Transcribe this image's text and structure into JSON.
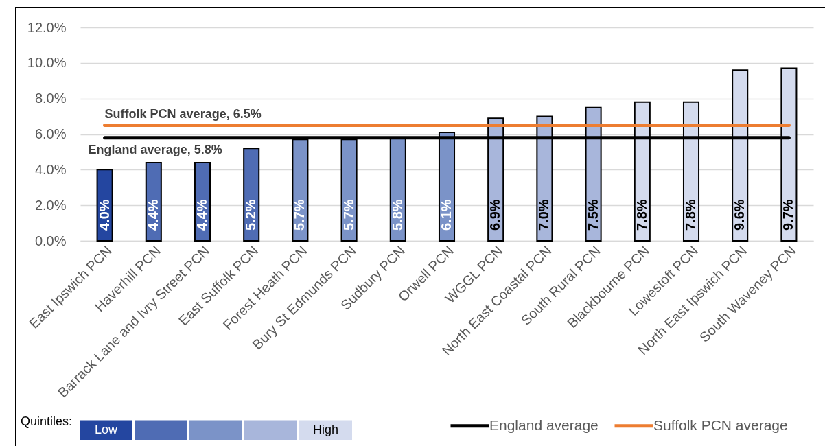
{
  "chart_data": {
    "type": "bar",
    "stacked": true,
    "categories": [
      "East Ipswich PCN",
      "Haverhill PCN",
      "Barrack Lane and Ivry Street PCN",
      "East Suffolk PCN",
      "Forest Heath PCN",
      "Bury St Edmunds PCN",
      "Sudbury PCN",
      "Orwell PCN",
      "WGGL PCN",
      "North East Coastal PCN",
      "South Rural PCN",
      "Blackbourne PCN",
      "Lowestoft PCN",
      "North East Ipswich PCN",
      "South Waveney PCN"
    ],
    "series": [
      {
        "name": "Low",
        "color": "#2446a0",
        "values": [
          4.0,
          null,
          null,
          null,
          null,
          null,
          null,
          null,
          null,
          null,
          null,
          null,
          null,
          null,
          null
        ],
        "value_labels": [
          "4.0%",
          null,
          null,
          null,
          null,
          null,
          null,
          null,
          null,
          null,
          null,
          null,
          null,
          null,
          null
        ]
      },
      {
        "color": "#4f6cb4",
        "values": [
          null,
          4.4,
          4.4,
          5.2,
          null,
          null,
          null,
          null,
          null,
          null,
          null,
          null,
          null,
          null,
          null
        ],
        "value_labels": [
          null,
          "4.4%",
          "4.4%",
          "5.2%",
          null,
          null,
          null,
          null,
          null,
          null,
          null,
          null,
          null,
          null,
          null
        ]
      },
      {
        "color": "#7b93c8",
        "values": [
          null,
          null,
          null,
          null,
          5.7,
          5.7,
          5.8,
          6.1,
          null,
          null,
          null,
          null,
          null,
          null,
          null
        ],
        "value_labels": [
          null,
          null,
          null,
          null,
          "5.7%",
          "5.7%",
          "5.8%",
          "6.1%",
          null,
          null,
          null,
          null,
          null,
          null,
          null
        ]
      },
      {
        "color": "#a8b6db",
        "values": [
          null,
          null,
          null,
          null,
          null,
          null,
          null,
          null,
          6.9,
          7.0,
          7.5,
          null,
          null,
          null,
          null
        ],
        "value_labels": [
          null,
          null,
          null,
          null,
          null,
          null,
          null,
          null,
          "6.9%",
          "7.0%",
          "7.5%",
          null,
          null,
          null,
          null
        ]
      },
      {
        "name": "High",
        "color": "#d4dbee",
        "values": [
          null,
          null,
          null,
          null,
          null,
          null,
          null,
          null,
          null,
          null,
          null,
          7.8,
          7.8,
          9.6,
          9.7
        ],
        "value_labels": [
          null,
          null,
          null,
          null,
          null,
          null,
          null,
          null,
          null,
          null,
          null,
          "7.8%",
          "7.8%",
          "9.6%",
          "9.7%"
        ]
      },
      {
        "type": "line",
        "name": "England average",
        "color": "#000000",
        "values": [
          5.8,
          5.8,
          5.8,
          5.8,
          5.8,
          5.8,
          5.8,
          5.8,
          5.8,
          5.8,
          5.8,
          5.8,
          5.8,
          5.8,
          5.8
        ]
      },
      {
        "type": "line",
        "name": "Suffolk PCN average",
        "color": "#ed7d31",
        "values": [
          6.5,
          6.5,
          6.5,
          6.5,
          6.5,
          6.5,
          6.5,
          6.5,
          6.5,
          6.5,
          6.5,
          6.5,
          6.5,
          6.5,
          6.5
        ]
      }
    ],
    "ylim": [
      0,
      12
    ],
    "yticks": [
      {
        "value": 0,
        "label": "0.0%"
      },
      {
        "value": 2,
        "label": "2.0%"
      },
      {
        "value": 4,
        "label": "4.0%"
      },
      {
        "value": 6,
        "label": "6.0%"
      },
      {
        "value": 8,
        "label": "8.0%"
      },
      {
        "value": 10,
        "label": "10.0%"
      },
      {
        "value": 12,
        "label": "12.0%"
      }
    ],
    "grid": "y",
    "legend": "bottom",
    "legend_title": "Quintiles:",
    "annotations": [
      {
        "text": "Suffolk PCN average, 6.5%",
        "x": "East Ipswich PCN",
        "y": 6.5
      },
      {
        "text": "England average, 5.8%",
        "x": "East Ipswich PCN",
        "y": 5.8
      }
    ]
  }
}
